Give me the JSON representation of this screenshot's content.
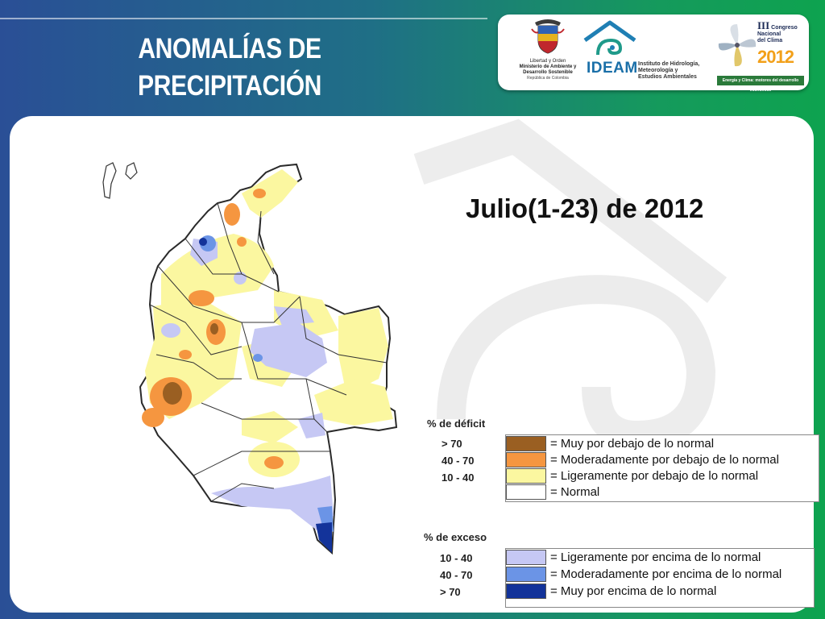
{
  "header": {
    "title_line1": "ANOMALÍAS DE",
    "title_line2": "PRECIPITACIÓN"
  },
  "logos": {
    "minambiente": {
      "motto": "Libertad y Orden",
      "name_line1": "Ministerio de Ambiente y",
      "name_line2": "Desarrollo Sostenible",
      "country": "República de Colombia"
    },
    "ideam": {
      "acronym": "IDEAM",
      "name_line1": "Instituto de Hidrología,",
      "name_line2": "Meteorología y",
      "name_line3": "Estudios Ambientales"
    },
    "congreso": {
      "roman": "III",
      "line1": "Congreso",
      "line2": "Nacional",
      "line3": "del Clima",
      "year": "2012",
      "tagline": "Energía y Clima: motores del desarrollo económico"
    }
  },
  "map": {
    "period": "Julio(1-23) de 2012"
  },
  "legend": {
    "deficit": {
      "heading": "% de déficit",
      "rows": [
        {
          "range": "> 70",
          "label": "= Muy por debajo de lo normal",
          "color": "#9a5f22"
        },
        {
          "range": "40 -  70",
          "label": "= Moderadamente por debajo de lo normal",
          "color": "#f59640"
        },
        {
          "range": "10 -  40",
          "label": "= Ligeramente por debajo de lo normal",
          "color": "#fbf7a0"
        },
        {
          "range": "",
          "label": "= Normal",
          "color": "#ffffff"
        }
      ]
    },
    "excess": {
      "heading": "% de exceso",
      "rows": [
        {
          "range": "10 -  40",
          "label": "= Ligeramente por encima de lo normal",
          "color": "#c6c8f4"
        },
        {
          "range": "40 -  70",
          "label": "= Moderadamente por encima de lo normal",
          "color": "#6b94e6"
        },
        {
          "range": "> 70",
          "label": "= Muy por encima de lo normal",
          "color": "#13339a"
        }
      ]
    }
  }
}
